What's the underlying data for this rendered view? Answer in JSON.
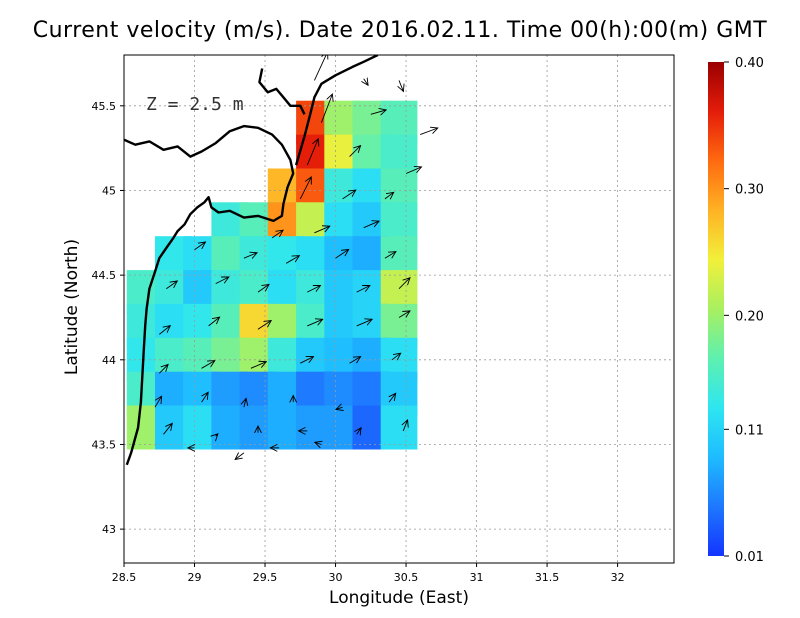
{
  "title": "Current velocity (m/s). Date 2016.02.11. Time 00(h):00(m) GMT",
  "depth_label": "Z = 2.5 m",
  "chart_data": {
    "type": "heatmap",
    "title": "Current velocity (m/s). Date 2016.02.11. Time 00(h):00(m) GMT",
    "xlabel": "Longitude (East)",
    "ylabel": "Latitude (North)",
    "xlim": [
      28.5,
      32.4
    ],
    "ylim": [
      42.8,
      45.8
    ],
    "x_ticks": [
      "28.5",
      "29",
      "29.5",
      "30",
      "30.5",
      "31",
      "31.5",
      "32"
    ],
    "y_ticks": [
      "43",
      "43.5",
      "44",
      "44.5",
      "45",
      "45.5"
    ],
    "grid": true,
    "colorbar": {
      "min": 0.01,
      "max": 0.4,
      "ticks": [
        "0.01",
        "0.11",
        "0.20",
        "0.30",
        "0.40"
      ],
      "colors": [
        "#1434ff",
        "#1e78ff",
        "#1ebcff",
        "#2ee6f0",
        "#5ef0b0",
        "#a8f060",
        "#f2f03a",
        "#ffb224",
        "#ff6a10",
        "#e41c0a",
        "#9a0000"
      ]
    },
    "speed_field": {
      "lon": [
        28.65,
        28.85,
        29.05,
        29.25,
        29.45,
        29.65,
        29.85,
        30.05,
        30.25,
        30.45
      ],
      "lat": [
        45.4,
        45.2,
        45.0,
        44.8,
        44.6,
        44.4,
        44.2,
        44.0,
        43.8,
        43.6
      ],
      "values": [
        [
          null,
          null,
          null,
          null,
          null,
          null,
          0.34,
          0.2,
          0.18,
          0.16
        ],
        [
          null,
          null,
          null,
          null,
          null,
          null,
          0.36,
          0.24,
          0.17,
          0.15
        ],
        [
          null,
          null,
          null,
          null,
          null,
          0.28,
          0.33,
          0.14,
          0.12,
          0.16
        ],
        [
          null,
          null,
          null,
          0.14,
          0.16,
          0.3,
          0.22,
          0.12,
          0.1,
          0.15
        ],
        [
          null,
          0.13,
          0.12,
          0.16,
          0.14,
          0.13,
          0.12,
          0.09,
          0.08,
          0.16
        ],
        [
          0.15,
          0.14,
          0.1,
          0.14,
          0.15,
          0.12,
          0.14,
          0.1,
          0.11,
          0.22
        ],
        [
          0.14,
          0.12,
          0.13,
          0.16,
          0.26,
          0.2,
          0.15,
          0.1,
          0.11,
          0.18
        ],
        [
          0.13,
          0.15,
          0.16,
          0.18,
          0.2,
          0.14,
          0.1,
          0.09,
          0.08,
          0.12
        ],
        [
          0.15,
          0.08,
          0.09,
          0.07,
          0.06,
          0.08,
          0.05,
          0.06,
          0.05,
          0.1
        ],
        [
          0.2,
          0.1,
          0.12,
          0.08,
          0.07,
          0.08,
          0.07,
          0.07,
          0.04,
          0.12
        ]
      ]
    },
    "vectors": [
      {
        "lon": 29.85,
        "lat": 45.65,
        "u": 0.12,
        "v": 0.26
      },
      {
        "lon": 30.2,
        "lat": 45.66,
        "u": 0.04,
        "v": -0.06
      },
      {
        "lon": 30.45,
        "lat": 45.65,
        "u": 0.04,
        "v": -0.1
      },
      {
        "lon": 29.9,
        "lat": 45.4,
        "u": 0.1,
        "v": 0.26
      },
      {
        "lon": 30.25,
        "lat": 45.45,
        "u": 0.14,
        "v": 0.04
      },
      {
        "lon": 30.6,
        "lat": 45.33,
        "u": 0.16,
        "v": 0.06
      },
      {
        "lon": 29.8,
        "lat": 45.15,
        "u": 0.1,
        "v": 0.24
      },
      {
        "lon": 30.1,
        "lat": 45.2,
        "u": 0.1,
        "v": 0.1
      },
      {
        "lon": 30.5,
        "lat": 45.1,
        "u": 0.14,
        "v": 0.06
      },
      {
        "lon": 29.75,
        "lat": 44.95,
        "u": 0.1,
        "v": 0.2
      },
      {
        "lon": 30.05,
        "lat": 44.95,
        "u": 0.12,
        "v": 0.08
      },
      {
        "lon": 30.35,
        "lat": 44.95,
        "u": 0.08,
        "v": 0.06
      },
      {
        "lon": 29.55,
        "lat": 44.72,
        "u": 0.1,
        "v": 0.07
      },
      {
        "lon": 29.85,
        "lat": 44.75,
        "u": 0.14,
        "v": 0.06
      },
      {
        "lon": 30.2,
        "lat": 44.78,
        "u": 0.14,
        "v": 0.06
      },
      {
        "lon": 29.0,
        "lat": 44.65,
        "u": 0.1,
        "v": 0.07
      },
      {
        "lon": 29.35,
        "lat": 44.6,
        "u": 0.12,
        "v": 0.05
      },
      {
        "lon": 29.65,
        "lat": 44.57,
        "u": 0.12,
        "v": 0.07
      },
      {
        "lon": 30.0,
        "lat": 44.6,
        "u": 0.12,
        "v": 0.08
      },
      {
        "lon": 30.35,
        "lat": 44.6,
        "u": 0.1,
        "v": 0.06
      },
      {
        "lon": 28.8,
        "lat": 44.42,
        "u": 0.1,
        "v": 0.07
      },
      {
        "lon": 29.15,
        "lat": 44.45,
        "u": 0.12,
        "v": 0.06
      },
      {
        "lon": 29.45,
        "lat": 44.4,
        "u": 0.1,
        "v": 0.07
      },
      {
        "lon": 29.8,
        "lat": 44.4,
        "u": 0.12,
        "v": 0.06
      },
      {
        "lon": 30.15,
        "lat": 44.4,
        "u": 0.12,
        "v": 0.06
      },
      {
        "lon": 30.45,
        "lat": 44.42,
        "u": 0.1,
        "v": 0.1
      },
      {
        "lon": 28.75,
        "lat": 44.15,
        "u": 0.1,
        "v": 0.08
      },
      {
        "lon": 29.1,
        "lat": 44.2,
        "u": 0.1,
        "v": 0.08
      },
      {
        "lon": 29.45,
        "lat": 44.18,
        "u": 0.12,
        "v": 0.08
      },
      {
        "lon": 29.8,
        "lat": 44.2,
        "u": 0.14,
        "v": 0.06
      },
      {
        "lon": 30.15,
        "lat": 44.2,
        "u": 0.14,
        "v": 0.06
      },
      {
        "lon": 30.45,
        "lat": 44.25,
        "u": 0.1,
        "v": 0.06
      },
      {
        "lon": 28.75,
        "lat": 43.92,
        "u": 0.08,
        "v": 0.08
      },
      {
        "lon": 29.05,
        "lat": 43.95,
        "u": 0.12,
        "v": 0.07
      },
      {
        "lon": 29.4,
        "lat": 43.95,
        "u": 0.14,
        "v": 0.06
      },
      {
        "lon": 29.75,
        "lat": 43.98,
        "u": 0.12,
        "v": 0.06
      },
      {
        "lon": 30.1,
        "lat": 43.98,
        "u": 0.1,
        "v": 0.06
      },
      {
        "lon": 30.4,
        "lat": 44.0,
        "u": 0.08,
        "v": 0.06
      },
      {
        "lon": 28.72,
        "lat": 43.72,
        "u": 0.06,
        "v": 0.1
      },
      {
        "lon": 29.05,
        "lat": 43.75,
        "u": 0.06,
        "v": 0.09
      },
      {
        "lon": 29.35,
        "lat": 43.72,
        "u": 0.02,
        "v": 0.08
      },
      {
        "lon": 29.7,
        "lat": 43.75,
        "u": 0.0,
        "v": 0.06
      },
      {
        "lon": 30.05,
        "lat": 43.72,
        "u": -0.06,
        "v": -0.02
      },
      {
        "lon": 30.38,
        "lat": 43.75,
        "u": 0.06,
        "v": 0.08
      },
      {
        "lon": 28.78,
        "lat": 43.56,
        "u": 0.08,
        "v": 0.1
      },
      {
        "lon": 29.15,
        "lat": 43.55,
        "u": 0.02,
        "v": 0.02
      },
      {
        "lon": 29.45,
        "lat": 43.57,
        "u": 0.0,
        "v": 0.06
      },
      {
        "lon": 29.8,
        "lat": 43.58,
        "u": -0.08,
        "v": 0.0
      },
      {
        "lon": 30.15,
        "lat": 43.56,
        "u": 0.04,
        "v": 0.06
      },
      {
        "lon": 30.48,
        "lat": 43.58,
        "u": 0.04,
        "v": 0.1
      },
      {
        "lon": 29.0,
        "lat": 43.48,
        "u": -0.06,
        "v": 0.0
      },
      {
        "lon": 29.35,
        "lat": 43.45,
        "u": -0.08,
        "v": -0.06
      },
      {
        "lon": 29.6,
        "lat": 43.48,
        "u": -0.08,
        "v": 0.0
      },
      {
        "lon": 29.9,
        "lat": 43.5,
        "u": -0.06,
        "v": 0.02
      }
    ],
    "coastline": [
      [
        28.5,
        45.3
      ],
      [
        28.58,
        45.27
      ],
      [
        28.68,
        45.29
      ],
      [
        28.78,
        45.24
      ],
      [
        28.88,
        45.26
      ],
      [
        28.97,
        45.2
      ],
      [
        29.05,
        45.23
      ],
      [
        29.15,
        45.28
      ],
      [
        29.25,
        45.35
      ],
      [
        29.35,
        45.38
      ],
      [
        29.45,
        45.37
      ],
      [
        29.55,
        45.33
      ],
      [
        29.62,
        45.27
      ],
      [
        29.68,
        45.18
      ],
      [
        29.7,
        45.1
      ],
      [
        29.66,
        45.02
      ],
      [
        29.63,
        44.92
      ],
      [
        29.62,
        44.85
      ],
      [
        29.56,
        44.82
      ],
      [
        29.45,
        44.85
      ],
      [
        29.35,
        44.84
      ],
      [
        29.25,
        44.88
      ],
      [
        29.17,
        44.87
      ],
      [
        29.12,
        44.9
      ],
      [
        29.1,
        44.96
      ],
      [
        29.07,
        44.93
      ],
      [
        29.02,
        44.9
      ],
      [
        28.97,
        44.86
      ],
      [
        28.93,
        44.8
      ],
      [
        28.88,
        44.76
      ],
      [
        28.85,
        44.72
      ],
      [
        28.8,
        44.66
      ],
      [
        28.75,
        44.6
      ],
      [
        28.72,
        44.52
      ],
      [
        28.68,
        44.42
      ],
      [
        28.66,
        44.3
      ],
      [
        28.65,
        44.2
      ],
      [
        28.64,
        44.05
      ],
      [
        28.63,
        43.9
      ],
      [
        28.62,
        43.75
      ],
      [
        28.6,
        43.6
      ],
      [
        28.55,
        43.45
      ],
      [
        28.52,
        43.38
      ]
    ],
    "coastline_north": [
      [
        29.72,
        45.15
      ],
      [
        29.78,
        45.32
      ],
      [
        29.82,
        45.45
      ],
      [
        29.85,
        45.55
      ],
      [
        29.9,
        45.63
      ],
      [
        30.0,
        45.68
      ],
      [
        30.12,
        45.73
      ],
      [
        30.2,
        45.76
      ],
      [
        30.3,
        45.8
      ]
    ],
    "coastline_inner": [
      [
        29.48,
        45.72
      ],
      [
        29.46,
        45.64
      ],
      [
        29.52,
        45.58
      ],
      [
        29.58,
        45.6
      ],
      [
        29.63,
        45.55
      ],
      [
        29.68,
        45.5
      ],
      [
        29.75,
        45.5
      ],
      [
        29.78,
        45.45
      ]
    ]
  }
}
